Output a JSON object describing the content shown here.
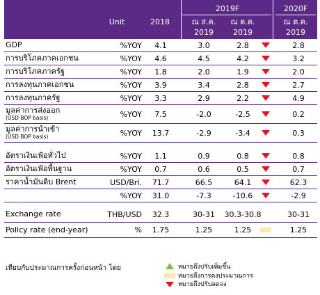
{
  "header": {
    "unit": "Unit",
    "y2018": "2018",
    "y2019f": "2019F",
    "y2020f": "2020F",
    "asof_aug_2019": "ณ ส.ค. 2019",
    "asof_oct_2019": "ณ ต.ค. 2019",
    "asof_oct_2019_b": "ณ ต.ค. 2019"
  },
  "rows": [
    {
      "label": "GDP",
      "sub": "",
      "unit": "%YOY",
      "v2018": "4.1",
      "aug": "3.0",
      "oct": "2.8",
      "change": "down",
      "f2020": "2.8"
    },
    {
      "label": "การบริโภคภาคเอกชน",
      "sub": "",
      "unit": "%YOY",
      "v2018": "4.6",
      "aug": "4.5",
      "oct": "4.2",
      "change": "down",
      "f2020": "3.2"
    },
    {
      "label": "การบริโภคภาครัฐ",
      "sub": "",
      "unit": "%YOY",
      "v2018": "1.8",
      "aug": "2.0",
      "oct": "1.9",
      "change": "down",
      "f2020": "2.0"
    },
    {
      "label": "การลงทุนภาคเอกชน",
      "sub": "",
      "unit": "%YOY",
      "v2018": "3.9",
      "aug": "3.4",
      "oct": "2.8",
      "change": "down",
      "f2020": "2.7"
    },
    {
      "label": "การลงทุนภาครัฐ",
      "sub": "",
      "unit": "%YOY",
      "v2018": "3.3",
      "aug": "2.9",
      "oct": "2.2",
      "change": "down",
      "f2020": "4.9"
    },
    {
      "label": "มูลค่าการส่งออก",
      "sub": "(USD BOP basis)",
      "unit": "%YOY",
      "v2018": "7.5",
      "aug": "-2.0",
      "oct": "-2.5",
      "change": "down",
      "f2020": "0.2"
    },
    {
      "label": "มูลค่าการนำเข้า",
      "sub": "(USD BOP basis)",
      "unit": "%YOY",
      "v2018": "13.7",
      "aug": "-2.9",
      "oct": "-3.4",
      "change": "down",
      "f2020": "0.3"
    },
    {
      "label": "อัตราเงินเฟ้อทั่วไป",
      "sub": "",
      "unit": "%YOY",
      "v2018": "1.1",
      "aug": "0.9",
      "oct": "0.8",
      "change": "down",
      "f2020": "0.8"
    },
    {
      "label": "อัตราเงินเฟ้อพื้นฐาน",
      "sub": "",
      "unit": "%YOY",
      "v2018": "0.7",
      "aug": "0.6",
      "oct": "0.5",
      "change": "down",
      "f2020": "0.7"
    },
    {
      "label": "ราคาน้ำมันดิบ Brent",
      "sub": "",
      "unit": "USD/Brl.",
      "v2018": "71.7",
      "aug": "66.5",
      "oct": "64.1",
      "change": "down",
      "f2020": "62.3"
    },
    {
      "label": "",
      "sub": "",
      "unit": "%YOY",
      "v2018": "31.0",
      "aug": "-7.3",
      "oct": "-10.6",
      "change": "down",
      "f2020": "-2.9"
    },
    {
      "label": "Exchange rate",
      "sub": "",
      "unit": "THB/USD",
      "v2018": "32.3",
      "aug": "30-31",
      "oct": "30.3-30.8",
      "change": "none",
      "f2020": "30-31"
    },
    {
      "label": "Policy rate (end-year)",
      "sub": "",
      "unit": "%",
      "v2018": "1.75",
      "aug": "1.25",
      "oct": "1.25",
      "change": "same",
      "f2020": "1.25"
    }
  ],
  "legend": {
    "intro": "เทียบกับประมาณการครั้งก่อนหน้า โดย",
    "up": "หมายถึงปรับเพิ่มขึ้น",
    "same": "หมายถึงการคงประมาณการ",
    "down": "หมายถึงปรับลดลง"
  },
  "colors": {
    "header_bg": "#5b2a86",
    "down": "#e8131c",
    "up": "#7cc24a",
    "same": "#fbe7b0"
  }
}
